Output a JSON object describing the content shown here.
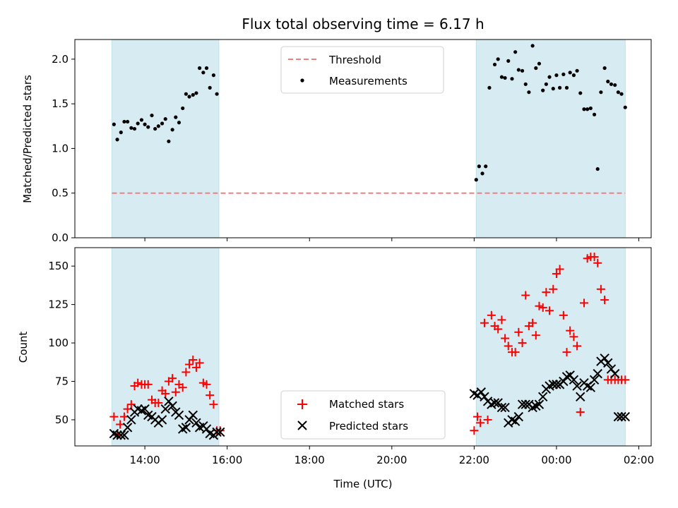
{
  "title": "Flux total observing time = 6.17 h",
  "colors": {
    "matched": "#ff0000",
    "predicted": "#000000",
    "threshold": "#f08080",
    "span": "#add8e6",
    "measurement": "#000000"
  },
  "chart_data": [
    {
      "type": "scatter",
      "ylabel": "Matched/Predicted stars",
      "ylim": [
        0,
        2.22
      ],
      "yticks": [
        0.0,
        0.5,
        1.0,
        1.5,
        2.0
      ],
      "ytick_labels": [
        "0.0",
        "0.5",
        "1.0",
        "1.5",
        "2.0"
      ],
      "threshold": 0.5,
      "legend": [
        "Threshold",
        "Measurements"
      ],
      "legend_position": "top-center",
      "series": [
        {
          "name": "Measurements",
          "x": [
            13.25,
            13.33,
            13.42,
            13.5,
            13.58,
            13.67,
            13.75,
            13.83,
            13.92,
            14.0,
            14.08,
            14.17,
            14.25,
            14.33,
            14.42,
            14.5,
            14.58,
            14.67,
            14.75,
            14.83,
            14.92,
            15.0,
            15.08,
            15.17,
            15.25,
            15.33,
            15.42,
            15.5,
            15.58,
            15.67,
            15.75,
            22.05,
            22.12,
            22.2,
            22.28,
            22.37,
            22.5,
            22.58,
            22.67,
            22.75,
            22.83,
            22.92,
            23.0,
            23.08,
            23.17,
            23.25,
            23.33,
            23.42,
            23.5,
            23.58,
            23.67,
            23.75,
            23.83,
            23.92,
            24.0,
            24.08,
            24.17,
            24.25,
            24.33,
            24.42,
            24.5,
            24.58,
            24.67,
            24.75,
            24.83,
            24.92,
            25.0,
            25.08,
            25.17,
            25.25,
            25.33,
            25.42,
            25.5,
            25.58,
            25.67
          ],
          "y": [
            1.27,
            1.1,
            1.18,
            1.3,
            1.3,
            1.23,
            1.22,
            1.28,
            1.32,
            1.27,
            1.24,
            1.37,
            1.22,
            1.25,
            1.28,
            1.33,
            1.08,
            1.21,
            1.35,
            1.29,
            1.45,
            1.61,
            1.58,
            1.6,
            1.62,
            1.9,
            1.85,
            1.9,
            1.68,
            1.82,
            1.61,
            0.65,
            0.8,
            0.72,
            0.8,
            1.68,
            1.94,
            2.0,
            1.8,
            1.79,
            1.98,
            1.78,
            2.08,
            1.88,
            1.87,
            1.72,
            1.63,
            2.15,
            1.9,
            1.95,
            1.65,
            1.72,
            1.8,
            1.67,
            1.82,
            1.68,
            1.83,
            1.68,
            1.85,
            1.82,
            1.87,
            1.62,
            1.44,
            1.44,
            1.45,
            1.38,
            0.77,
            1.63,
            1.9,
            1.75,
            1.72,
            1.71,
            1.63,
            1.61,
            1.46
          ]
        }
      ]
    },
    {
      "type": "scatter",
      "xlabel": "Time (UTC)",
      "ylabel": "Count",
      "xlim": [
        12.3,
        26.3
      ],
      "ylim": [
        33,
        162
      ],
      "xticks": [
        14,
        16,
        18,
        20,
        22,
        24,
        26
      ],
      "xtick_labels": [
        "14:00",
        "16:00",
        "18:00",
        "20:00",
        "22:00",
        "00:00",
        "02:00"
      ],
      "yticks": [
        50,
        75,
        100,
        125,
        150
      ],
      "ytick_labels": [
        "50",
        "75",
        "100",
        "125",
        "150"
      ],
      "shaded_intervals": [
        [
          13.2,
          15.8
        ],
        [
          22.05,
          25.67
        ]
      ],
      "legend_position": "bottom-center",
      "series": [
        {
          "name": "Matched stars",
          "marker": "+",
          "x": [
            13.25,
            13.33,
            13.4,
            13.5,
            13.58,
            13.67,
            13.75,
            13.83,
            13.92,
            14.0,
            14.08,
            14.17,
            14.25,
            14.33,
            14.42,
            14.5,
            14.58,
            14.67,
            14.75,
            14.83,
            14.92,
            15.0,
            15.08,
            15.17,
            15.25,
            15.33,
            15.42,
            15.5,
            15.58,
            15.67,
            15.75,
            15.83,
            22.0,
            22.08,
            22.15,
            22.25,
            22.33,
            22.42,
            22.5,
            22.58,
            22.67,
            22.75,
            22.83,
            22.92,
            23.0,
            23.08,
            23.17,
            23.25,
            23.33,
            23.42,
            23.5,
            23.58,
            23.67,
            23.75,
            23.83,
            23.92,
            24.0,
            24.08,
            24.17,
            24.25,
            24.33,
            24.42,
            24.5,
            24.58,
            24.67,
            24.75,
            24.83,
            24.92,
            25.0,
            25.08,
            25.17,
            25.25,
            25.33,
            25.42,
            25.5,
            25.58,
            25.67
          ],
          "y": [
            52,
            40,
            47,
            52,
            57,
            60,
            72,
            74,
            73,
            73,
            73,
            63,
            61,
            61,
            69,
            67,
            75,
            77,
            68,
            73,
            71,
            81,
            86,
            89,
            84,
            87,
            74,
            73,
            66,
            60,
            43,
            43,
            43,
            52,
            48,
            113,
            50,
            118,
            111,
            109,
            115,
            103,
            98,
            94,
            94,
            107,
            100,
            131,
            111,
            113,
            105,
            124,
            123,
            133,
            121,
            135,
            145,
            148,
            118,
            94,
            108,
            104,
            98,
            55,
            126,
            155,
            156,
            156,
            152,
            135,
            128,
            76,
            76,
            76,
            76,
            76,
            76
          ]
        },
        {
          "name": "Predicted stars",
          "marker": "x",
          "x": [
            13.25,
            13.33,
            13.42,
            13.5,
            13.58,
            13.67,
            13.75,
            13.83,
            13.92,
            14.0,
            14.08,
            14.17,
            14.25,
            14.33,
            14.42,
            14.5,
            14.58,
            14.67,
            14.75,
            14.83,
            14.92,
            15.0,
            15.08,
            15.17,
            15.25,
            15.33,
            15.42,
            15.5,
            15.58,
            15.67,
            15.75,
            15.83,
            22.0,
            22.08,
            22.17,
            22.25,
            22.33,
            22.42,
            22.5,
            22.58,
            22.67,
            22.75,
            22.83,
            22.92,
            23.0,
            23.08,
            23.17,
            23.25,
            23.33,
            23.42,
            23.5,
            23.58,
            23.67,
            23.75,
            23.83,
            23.92,
            24.0,
            24.08,
            24.17,
            24.25,
            24.33,
            24.42,
            24.5,
            24.58,
            24.67,
            24.75,
            24.83,
            24.92,
            25.0,
            25.08,
            25.17,
            25.25,
            25.33,
            25.42,
            25.5,
            25.58,
            25.67
          ],
          "y": [
            41,
            40,
            40,
            40,
            45,
            50,
            55,
            57,
            56,
            57,
            53,
            52,
            50,
            48,
            50,
            57,
            62,
            59,
            55,
            53,
            44,
            45,
            50,
            53,
            48,
            45,
            46,
            44,
            41,
            40,
            42,
            42,
            67,
            66,
            68,
            65,
            62,
            60,
            61,
            61,
            58,
            58,
            48,
            50,
            49,
            52,
            60,
            60,
            60,
            58,
            59,
            60,
            65,
            70,
            72,
            73,
            73,
            73,
            75,
            78,
            79,
            76,
            72,
            65,
            74,
            72,
            71,
            76,
            80,
            88,
            90,
            87,
            83,
            80,
            52,
            52,
            52
          ]
        }
      ]
    }
  ]
}
